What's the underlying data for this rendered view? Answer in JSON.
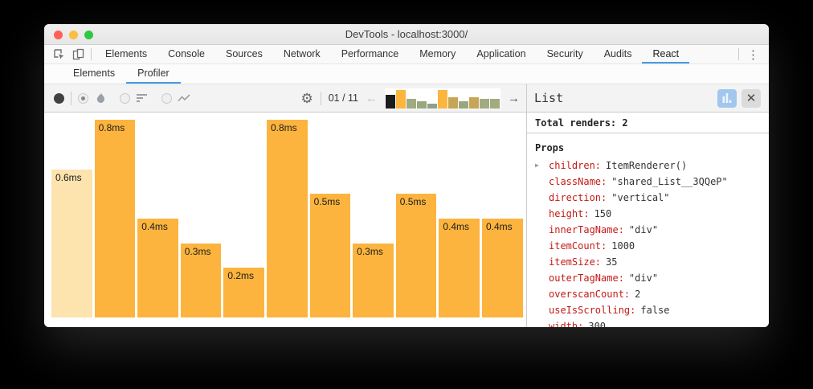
{
  "window": {
    "title": "DevTools - localhost:3000/"
  },
  "main_tabbar": {
    "tabs": [
      "Elements",
      "Console",
      "Sources",
      "Network",
      "Performance",
      "Memory",
      "Application",
      "Security",
      "Audits",
      "React"
    ],
    "active_tab": "React",
    "menu_icon": "⋮"
  },
  "extension_tabbar": {
    "tabs": [
      "Elements",
      "Profiler"
    ],
    "active_tab": "Profiler"
  },
  "profiler_toolbar": {
    "views": [
      "flamegraph",
      "ranked",
      "interactions"
    ],
    "selected_view": "flamegraph",
    "snapshot_position": "01 / 11",
    "prev_arrow": "←",
    "next_arrow": "→",
    "gear_glyph": "⚙"
  },
  "chart_data": {
    "type": "bar",
    "unit": "ms",
    "values": [
      0.6,
      0.8,
      0.4,
      0.3,
      0.2,
      0.8,
      0.5,
      0.3,
      0.5,
      0.4,
      0.4
    ],
    "labels": [
      "0.6ms",
      "0.8ms",
      "0.4ms",
      "0.3ms",
      "0.2ms",
      "0.8ms",
      "0.5ms",
      "0.3ms",
      "0.5ms",
      "0.4ms",
      "0.4ms"
    ],
    "selected_index": 0,
    "ylim": [
      0,
      0.8
    ],
    "bar_color": "#fcb43e",
    "selected_bar_color": "#fde3ae",
    "thumbnail_colors": [
      "#1c1c1c",
      "#fcb53e",
      "#a0ab80",
      "#9aa77d",
      "#90a18b",
      "#fcb53e",
      "#c7a557",
      "#9aa77d",
      "#c7a557",
      "#a0ab80",
      "#a0ab80"
    ]
  },
  "details_panel": {
    "title": "List",
    "close_glyph": "✕",
    "total_renders_label": "Total renders:",
    "total_renders_value": "2",
    "props_header": "Props",
    "expander_glyph": "▶",
    "props": [
      {
        "key": "children",
        "value": "ItemRenderer()",
        "expandable": true
      },
      {
        "key": "className",
        "value": "\"shared_List__3QQeP\"",
        "expandable": false
      },
      {
        "key": "direction",
        "value": "\"vertical\"",
        "expandable": false
      },
      {
        "key": "height",
        "value": "150",
        "expandable": false
      },
      {
        "key": "innerTagName",
        "value": "\"div\"",
        "expandable": false
      },
      {
        "key": "itemCount",
        "value": "1000",
        "expandable": false
      },
      {
        "key": "itemSize",
        "value": "35",
        "expandable": false
      },
      {
        "key": "outerTagName",
        "value": "\"div\"",
        "expandable": false
      },
      {
        "key": "overscanCount",
        "value": "2",
        "expandable": false
      },
      {
        "key": "useIsScrolling",
        "value": "false",
        "expandable": false
      },
      {
        "key": "width",
        "value": "300",
        "expandable": false
      }
    ]
  }
}
